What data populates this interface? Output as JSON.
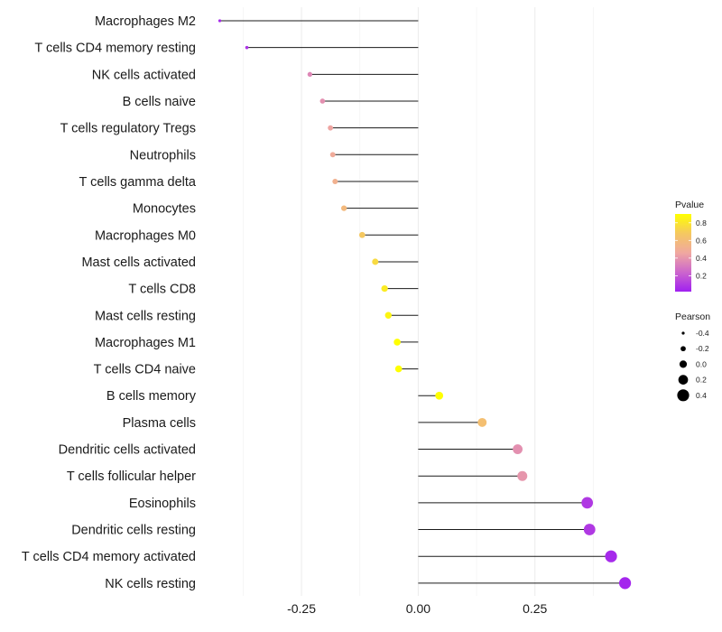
{
  "chart_data": {
    "type": "lollipop",
    "title": "",
    "xlabel": "",
    "ylabel": "",
    "xlim": [
      -0.455,
      0.525
    ],
    "x_ticks": [
      -0.25,
      0.0,
      0.25
    ],
    "x_tick_labels": [
      "-0.25",
      "0.00",
      "0.25"
    ],
    "grid": true,
    "categories": [
      "Macrophages M2",
      "T cells CD4 memory resting",
      "NK cells activated",
      "B cells naive",
      "T cells regulatory  Tregs",
      "Neutrophils",
      "T cells gamma delta",
      "Monocytes",
      "Macrophages M0",
      "Mast cells activated",
      "T cells CD8",
      "Mast cells resting",
      "Macrophages M1",
      "T cells CD4 naive",
      "B cells memory",
      "Plasma cells",
      "Dendritic cells activated",
      "T cells follicular helper",
      "Eosinophils",
      "Dendritic cells resting",
      "T cells CD4 memory activated",
      "NK cells resting"
    ],
    "values": [
      -0.425,
      -0.367,
      -0.232,
      -0.205,
      -0.188,
      -0.183,
      -0.178,
      -0.159,
      -0.12,
      -0.092,
      -0.072,
      -0.064,
      -0.045,
      -0.042,
      0.045,
      0.137,
      0.213,
      0.223,
      0.362,
      0.367,
      0.413,
      0.443
    ],
    "pvalues": [
      0.05,
      0.08,
      0.35,
      0.38,
      0.45,
      0.48,
      0.52,
      0.58,
      0.68,
      0.75,
      0.82,
      0.86,
      0.9,
      0.9,
      0.92,
      0.62,
      0.38,
      0.4,
      0.1,
      0.1,
      0.05,
      0.04
    ],
    "color_legend": {
      "title": "Pvalue",
      "range": [
        0.02,
        0.9
      ],
      "ticks": [
        0.2,
        0.4,
        0.6,
        0.8
      ],
      "tick_labels": [
        "0.2",
        "0.4",
        "0.6",
        "0.8"
      ],
      "colors": [
        "#a020f0",
        "#cc66cc",
        "#f0a8a0",
        "#f5c860",
        "#ffff00"
      ]
    },
    "size_legend": {
      "title": "Pearson",
      "values": [
        -0.4,
        -0.2,
        0.0,
        0.2,
        0.4
      ],
      "labels": [
        "-0.4",
        "-0.2",
        "0.0",
        "0.2",
        "0.4"
      ]
    },
    "legend_position": "right"
  }
}
